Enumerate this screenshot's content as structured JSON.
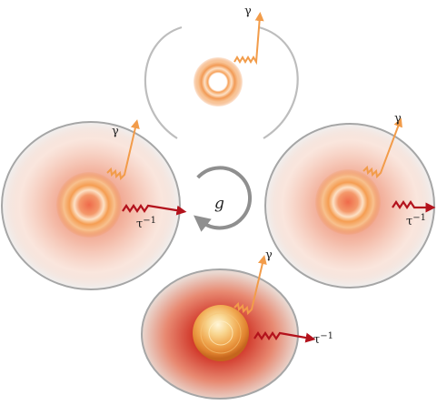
{
  "labels": {
    "gamma": "γ",
    "tau": "τ",
    "tau_exp": "−1",
    "cycle": "g"
  },
  "colors": {
    "photon_gamma": "#f29c4a",
    "photon_tau": "#b3121c",
    "cavity_rim": "#9a9a9a",
    "cycle_arrow": "#8f8f8f",
    "cloud_core": "#d9442e"
  }
}
